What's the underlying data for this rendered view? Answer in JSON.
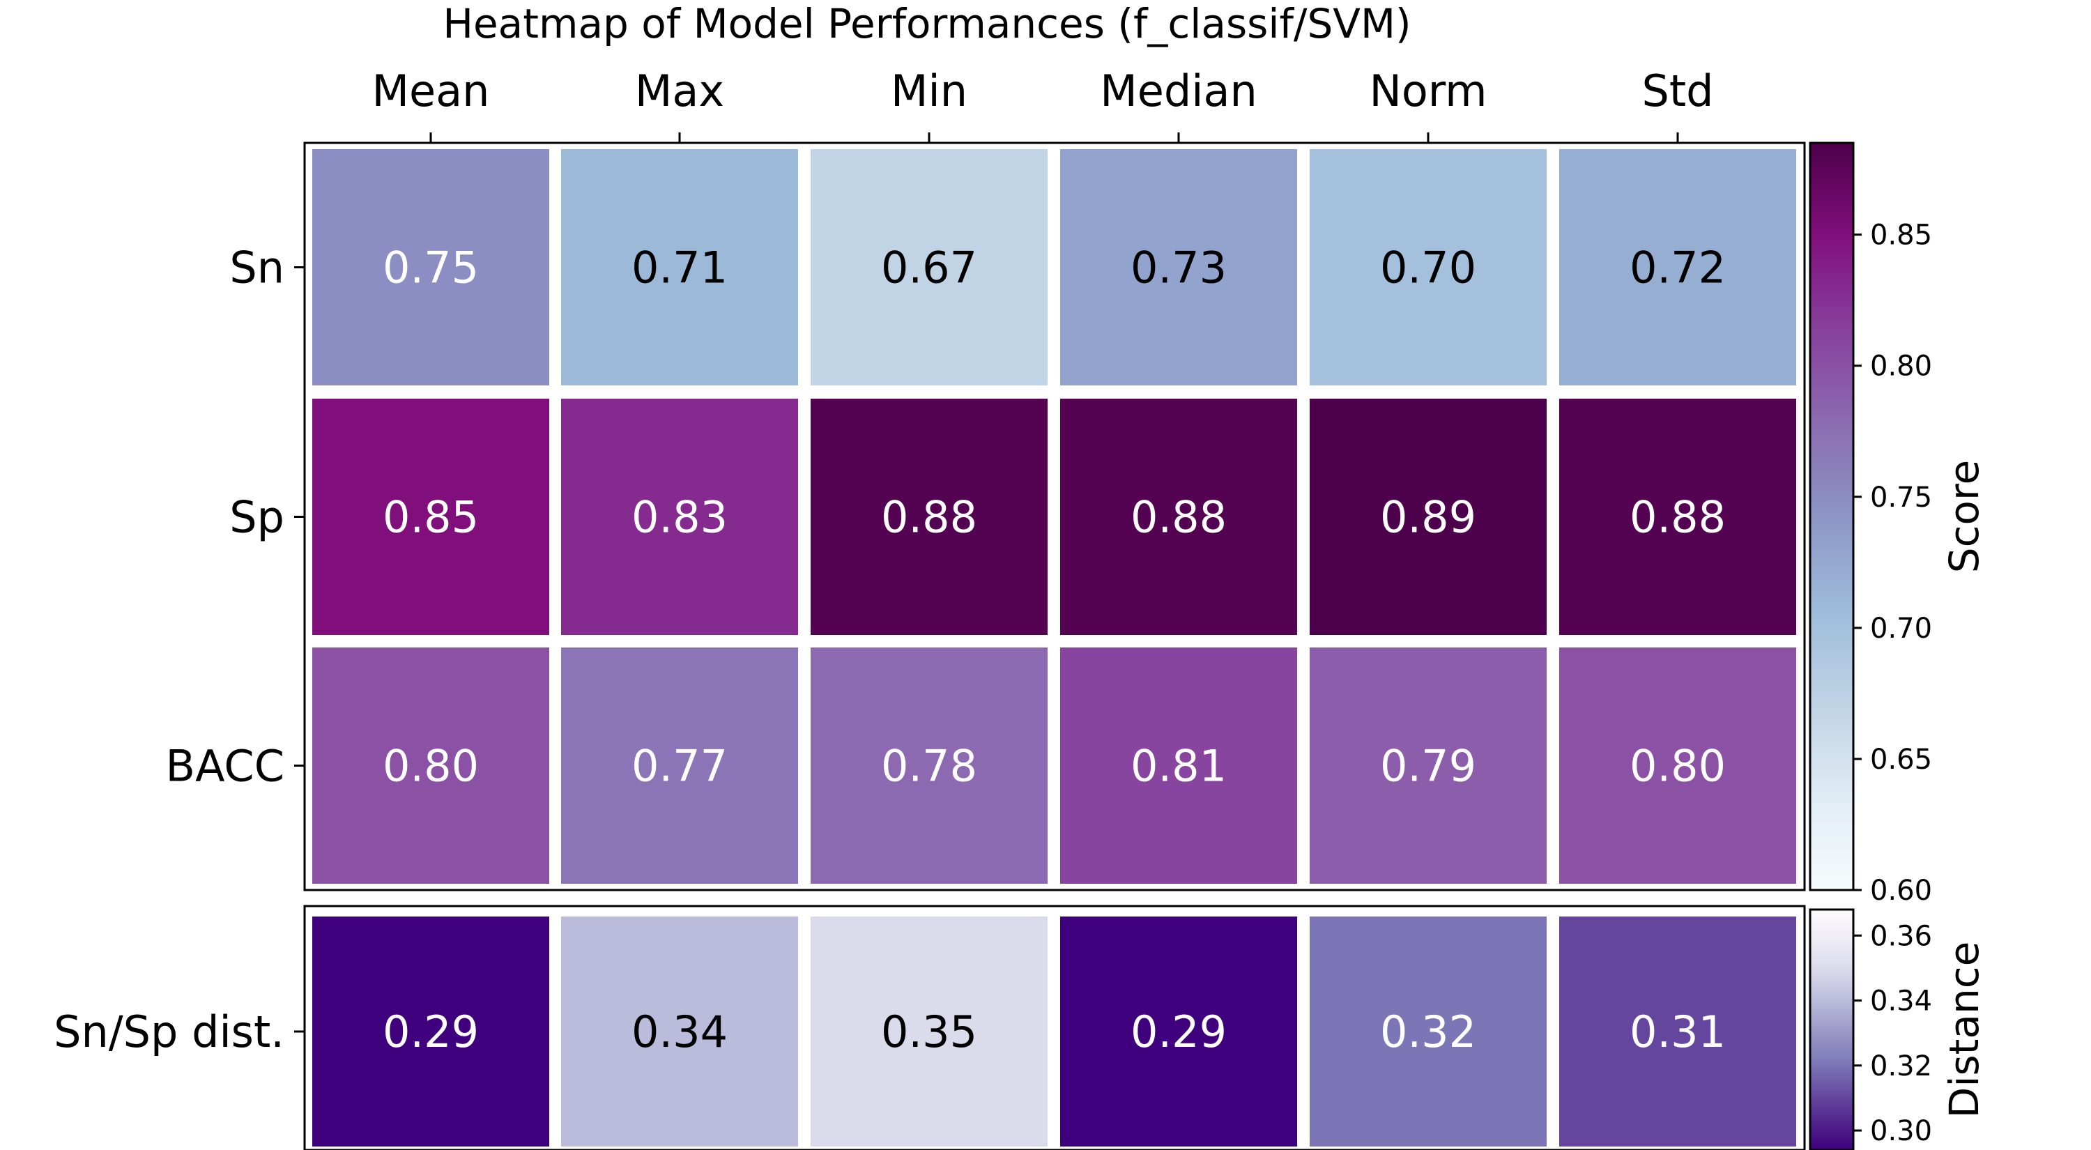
{
  "chart_data": {
    "type": "heatmap",
    "title": "Heatmap of Model Performances (f_classif/SVM)",
    "columns": [
      "Mean",
      "Max",
      "Min",
      "Median",
      "Norm",
      "Std"
    ],
    "score_panel": {
      "rows": [
        "Sn",
        "Sp",
        "BACC"
      ],
      "values": [
        [
          0.75,
          0.71,
          0.67,
          0.73,
          0.7,
          0.72
        ],
        [
          0.85,
          0.83,
          0.88,
          0.88,
          0.89,
          0.88
        ],
        [
          0.8,
          0.77,
          0.78,
          0.81,
          0.79,
          0.8
        ]
      ],
      "labels": [
        [
          "0.75",
          "0.71",
          "0.67",
          "0.73",
          "0.70",
          "0.72"
        ],
        [
          "0.85",
          "0.83",
          "0.88",
          "0.88",
          "0.89",
          "0.88"
        ],
        [
          "0.80",
          "0.77",
          "0.78",
          "0.81",
          "0.79",
          "0.80"
        ]
      ],
      "colorbar": {
        "label": "Score",
        "range": [
          0.6,
          0.885
        ],
        "ticks": [
          "0.60",
          "0.65",
          "0.70",
          "0.75",
          "0.80",
          "0.85"
        ],
        "colormap": "BuPu"
      }
    },
    "distance_panel": {
      "rows": [
        "Sn/Sp dist."
      ],
      "values": [
        [
          0.29,
          0.34,
          0.35,
          0.29,
          0.32,
          0.31
        ]
      ],
      "labels": [
        [
          "0.29",
          "0.34",
          "0.35",
          "0.29",
          "0.32",
          "0.31"
        ]
      ],
      "colorbar": {
        "label": "Distance",
        "range": [
          0.294,
          0.368
        ],
        "ticks": [
          "0.30",
          "0.32",
          "0.34",
          "0.36"
        ],
        "colormap": "Purples_r"
      }
    }
  }
}
